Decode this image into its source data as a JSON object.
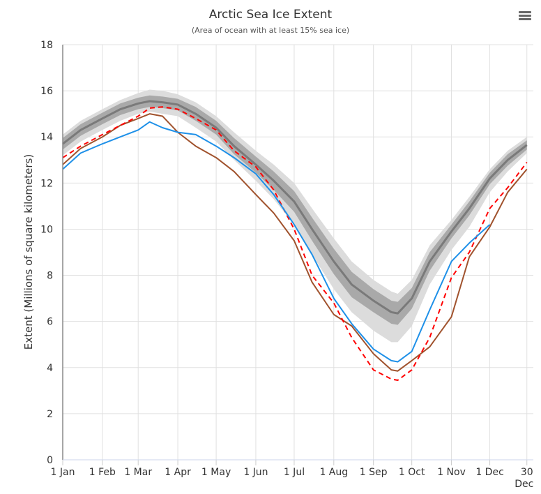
{
  "chart_data": {
    "type": "line",
    "title": "Arctic Sea Ice Extent",
    "subtitle": "(Area of ocean with at least 15% sea ice)",
    "ylabel": "Extent (Millions of square kilometers)",
    "xlabel": "",
    "ylim": [
      0,
      18
    ],
    "yticks": [
      0,
      2,
      4,
      6,
      8,
      10,
      12,
      14,
      16,
      18
    ],
    "xticks": [
      {
        "date": "01-01",
        "label": "1 Jan"
      },
      {
        "date": "02-01",
        "label": "1 Feb"
      },
      {
        "date": "03-01",
        "label": "1 Mar"
      },
      {
        "date": "04-01",
        "label": "1 Apr"
      },
      {
        "date": "05-01",
        "label": "1 May"
      },
      {
        "date": "06-01",
        "label": "1 Jun"
      },
      {
        "date": "07-01",
        "label": "1 Jul"
      },
      {
        "date": "08-01",
        "label": "1 Aug"
      },
      {
        "date": "09-01",
        "label": "1 Sep"
      },
      {
        "date": "10-01",
        "label": "1 Oct"
      },
      {
        "date": "11-01",
        "label": "1 Nov"
      },
      {
        "date": "12-01",
        "label": "1 Dec"
      },
      {
        "date": "12-30",
        "label": "30",
        "label2": "Dec"
      }
    ],
    "grid": true,
    "x": [
      "01-01",
      "01-15",
      "02-01",
      "02-15",
      "03-01",
      "03-10",
      "03-20",
      "04-01",
      "04-15",
      "05-01",
      "05-15",
      "06-01",
      "06-15",
      "07-01",
      "07-15",
      "08-01",
      "08-15",
      "09-01",
      "09-15",
      "09-20",
      "10-01",
      "10-15",
      "11-01",
      "11-15",
      "12-01",
      "12-15",
      "12-30"
    ],
    "bands": [
      {
        "color": "#dcdcdc",
        "upper": [
          14.1,
          14.7,
          15.2,
          15.6,
          15.9,
          16.05,
          16.0,
          15.85,
          15.5,
          14.9,
          14.2,
          13.4,
          12.8,
          12.0,
          10.9,
          9.6,
          8.6,
          7.8,
          7.3,
          7.2,
          7.8,
          9.3,
          10.4,
          11.4,
          12.6,
          13.4,
          14.0
        ],
        "lower": [
          13.2,
          13.8,
          14.3,
          14.7,
          15.0,
          15.1,
          15.0,
          14.9,
          14.4,
          13.8,
          13.0,
          12.1,
          11.3,
          10.2,
          8.9,
          7.4,
          6.4,
          5.6,
          5.1,
          5.1,
          5.8,
          7.6,
          9.1,
          10.1,
          11.6,
          12.5,
          13.3
        ]
      },
      {
        "color": "#a9a9a9",
        "upper": [
          13.95,
          14.55,
          15.05,
          15.45,
          15.7,
          15.8,
          15.75,
          15.65,
          15.3,
          14.7,
          13.95,
          13.15,
          12.5,
          11.65,
          10.5,
          9.15,
          8.15,
          7.4,
          6.9,
          6.85,
          7.45,
          9.0,
          10.2,
          11.2,
          12.45,
          13.25,
          13.85
        ],
        "lower": [
          13.45,
          14.05,
          14.55,
          14.95,
          15.2,
          15.3,
          15.25,
          15.15,
          14.7,
          14.1,
          13.25,
          12.45,
          11.7,
          10.75,
          9.5,
          8.05,
          7.05,
          6.4,
          5.9,
          5.85,
          6.55,
          8.2,
          9.6,
          10.6,
          11.95,
          12.75,
          13.45
        ]
      }
    ],
    "series": [
      {
        "role": "median",
        "color": "#7a7a7a",
        "dash": false,
        "values": [
          13.7,
          14.3,
          14.8,
          15.2,
          15.45,
          15.55,
          15.5,
          15.4,
          15.0,
          14.4,
          13.6,
          12.8,
          12.1,
          11.2,
          10.0,
          8.6,
          7.6,
          6.9,
          6.4,
          6.35,
          7.0,
          8.6,
          9.9,
          10.9,
          12.2,
          13.0,
          13.65
        ]
      },
      {
        "color": "#a0522d",
        "dash": false,
        "values": [
          12.8,
          13.5,
          14.0,
          14.5,
          14.8,
          15.0,
          14.9,
          14.2,
          13.6,
          13.1,
          12.5,
          11.5,
          10.7,
          9.5,
          7.7,
          6.3,
          5.8,
          4.6,
          3.9,
          3.85,
          4.3,
          4.9,
          6.2,
          8.8,
          10.1,
          11.6,
          12.6
        ]
      },
      {
        "color": "#ff0000",
        "dash": true,
        "values": [
          13.1,
          13.6,
          14.1,
          14.5,
          14.9,
          15.25,
          15.3,
          15.2,
          14.8,
          14.3,
          13.4,
          12.7,
          11.7,
          10.0,
          8.0,
          6.8,
          5.3,
          3.9,
          3.5,
          3.45,
          3.9,
          5.3,
          7.9,
          9.0,
          10.9,
          11.8,
          12.9
        ]
      },
      {
        "color": "#1e90e8",
        "dash": false,
        "values": [
          12.6,
          13.3,
          13.7,
          14.0,
          14.3,
          14.65,
          14.4,
          14.2,
          14.1,
          13.6,
          13.1,
          12.4,
          11.5,
          10.2,
          8.9,
          7.0,
          5.9,
          4.8,
          4.3,
          4.25,
          4.7,
          6.5,
          8.6,
          9.4,
          10.2,
          null,
          null
        ]
      }
    ]
  },
  "menu": {
    "icon": "hamburger-menu-icon"
  }
}
